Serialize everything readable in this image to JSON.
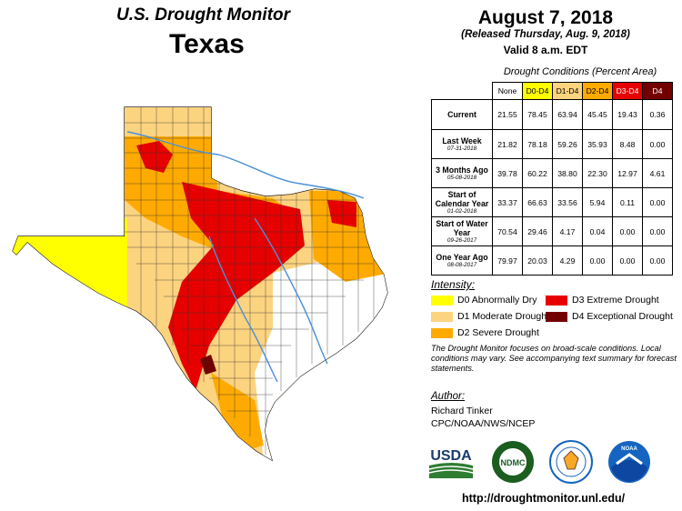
{
  "header": {
    "title_line1": "U.S. Drought Monitor",
    "title_line2": "Texas",
    "date": "August 7, 2018",
    "released": "(Released Thursday, Aug. 9, 2018)",
    "valid": "Valid 8 a.m. EDT"
  },
  "table": {
    "title": "Drought Conditions (Percent Area)",
    "columns": [
      "None",
      "D0-D4",
      "D1-D4",
      "D2-D4",
      "D3-D4",
      "D4"
    ],
    "rows": [
      {
        "label": "Current",
        "date": "",
        "values": [
          "21.55",
          "78.45",
          "63.94",
          "45.45",
          "19.43",
          "0.36"
        ]
      },
      {
        "label": "Last Week",
        "date": "07-31-2018",
        "values": [
          "21.82",
          "78.18",
          "59.26",
          "35.93",
          "8.48",
          "0.00"
        ]
      },
      {
        "label": "3 Months Ago",
        "date": "05-08-2018",
        "values": [
          "39.78",
          "60.22",
          "38.80",
          "22.30",
          "12.97",
          "4.61"
        ]
      },
      {
        "label": "Start of Calendar Year",
        "date": "01-02-2018",
        "values": [
          "33.37",
          "66.63",
          "33.56",
          "5.94",
          "0.11",
          "0.00"
        ]
      },
      {
        "label": "Start of Water Year",
        "date": "09-26-2017",
        "values": [
          "70.54",
          "29.46",
          "4.17",
          "0.04",
          "0.00",
          "0.00"
        ]
      },
      {
        "label": "One Year Ago",
        "date": "08-08-2017",
        "values": [
          "79.97",
          "20.03",
          "4.29",
          "0.00",
          "0.00",
          "0.00"
        ]
      }
    ]
  },
  "legend": {
    "title": "Intensity:",
    "items": [
      {
        "label": "D0 Abnormally Dry",
        "color": "#ffff00"
      },
      {
        "label": "D1 Moderate Drought",
        "color": "#fcd37f"
      },
      {
        "label": "D2 Severe Drought",
        "color": "#ffaa00"
      },
      {
        "label": "D3 Extreme Drought",
        "color": "#e60000"
      },
      {
        "label": "D4 Exceptional Drought",
        "color": "#730000"
      }
    ]
  },
  "note": "The Drought Monitor focuses on broad-scale conditions. Local conditions may vary. See accompanying text summary for forecast statements.",
  "author": {
    "title": "Author:",
    "name": "Richard Tinker",
    "org": "CPC/NOAA/NWS/NCEP"
  },
  "logos": {
    "usda": "USDA",
    "ndmc": "NDMC",
    "noaa": "NOAA"
  },
  "url": "http://droughtmonitor.unl.edu/",
  "map": {
    "region": "Texas",
    "colors": {
      "none": "#ffffff",
      "d0": "#ffff00",
      "d1": "#fcd37f",
      "d2": "#ffaa00",
      "d3": "#e60000",
      "d4": "#730000",
      "rivers": "#4a90d9"
    }
  }
}
